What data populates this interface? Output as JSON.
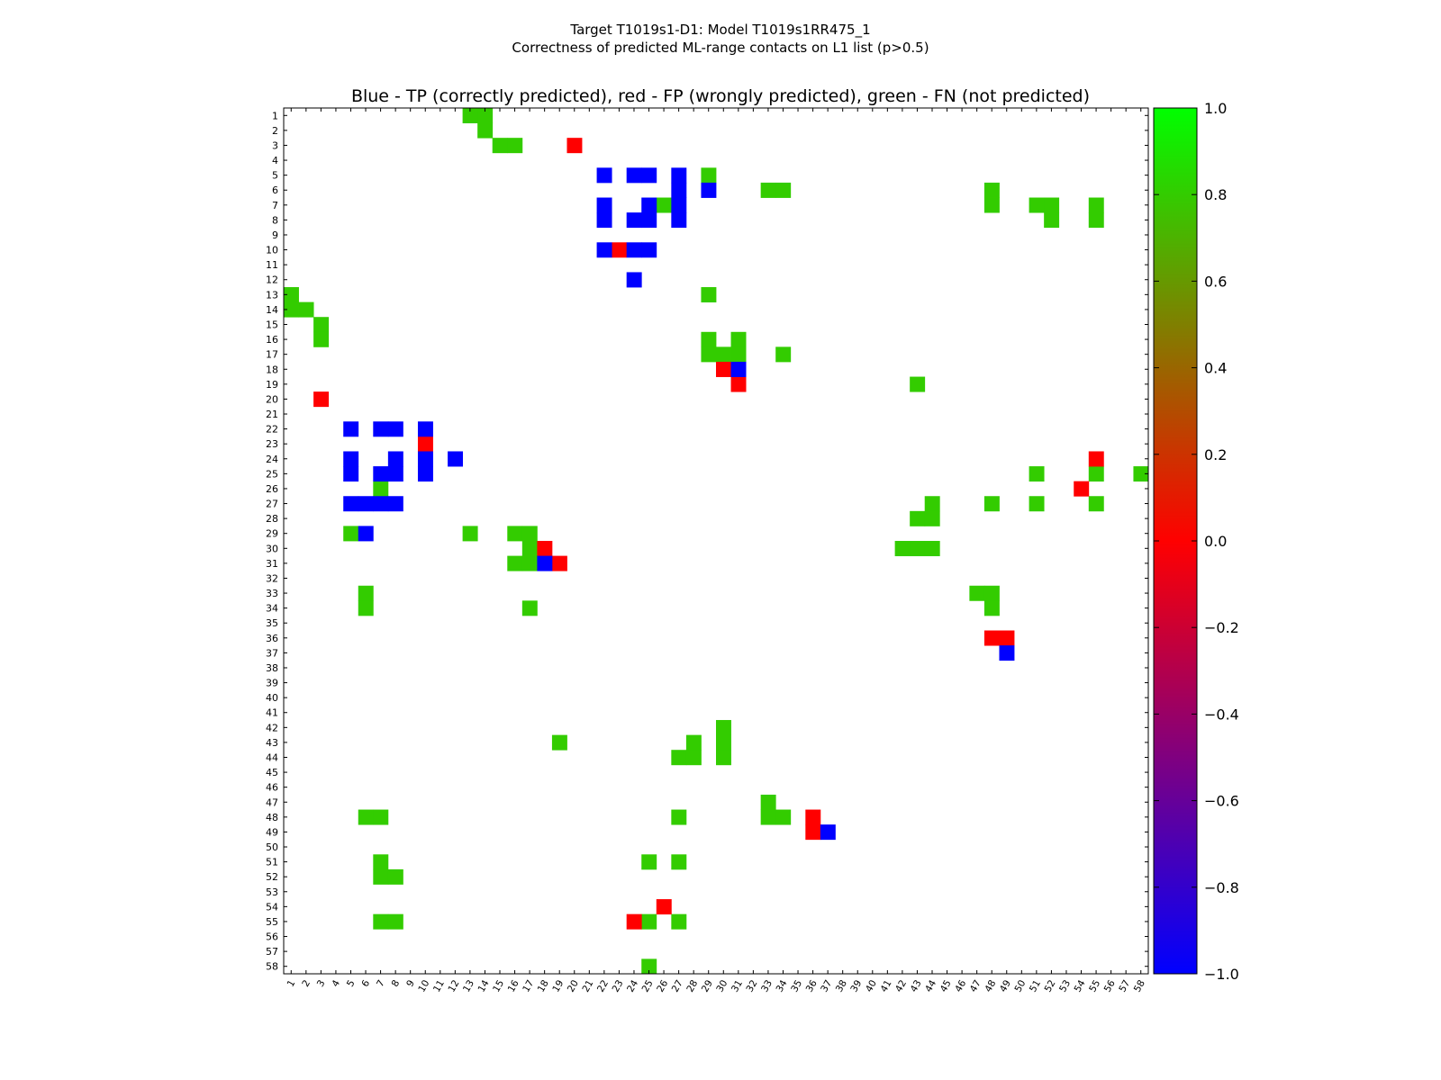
{
  "figure": {
    "suptitle_line1": "Target T1019s1-D1: Model T1019s1RR475_1",
    "suptitle_line2": "Correctness of predicted ML-range contacts on L1 list (p>0.5)"
  },
  "chart_data": {
    "type": "heatmap",
    "title": "Blue - TP (correctly predicted), red - FP (wrongly predicted), green - FN (not predicted)",
    "xlabel": "",
    "ylabel": "",
    "n": 58,
    "x_tick_labels": [
      "1",
      "2",
      "3",
      "4",
      "5",
      "6",
      "7",
      "8",
      "9",
      "10",
      "11",
      "12",
      "13",
      "14",
      "15",
      "16",
      "17",
      "18",
      "19",
      "20",
      "21",
      "22",
      "23",
      "24",
      "25",
      "26",
      "27",
      "28",
      "29",
      "30",
      "31",
      "32",
      "33",
      "34",
      "35",
      "36",
      "37",
      "38",
      "39",
      "40",
      "41",
      "42",
      "43",
      "44",
      "45",
      "46",
      "47",
      "48",
      "49",
      "50",
      "51",
      "52",
      "53",
      "54",
      "55",
      "56",
      "57",
      "58"
    ],
    "y_tick_labels": [
      "1",
      "2",
      "3",
      "4",
      "5",
      "6",
      "7",
      "8",
      "9",
      "10",
      "11",
      "12",
      "13",
      "14",
      "15",
      "16",
      "17",
      "18",
      "19",
      "20",
      "21",
      "22",
      "23",
      "24",
      "25",
      "26",
      "27",
      "28",
      "29",
      "30",
      "31",
      "32",
      "33",
      "34",
      "35",
      "36",
      "37",
      "38",
      "39",
      "40",
      "41",
      "42",
      "43",
      "44",
      "45",
      "46",
      "47",
      "48",
      "49",
      "50",
      "51",
      "52",
      "53",
      "54",
      "55",
      "56",
      "57",
      "58"
    ],
    "legend": {
      "TP": {
        "value": -1,
        "color": "#0000ff"
      },
      "FP": {
        "value": 0,
        "color": "#ff0000"
      },
      "FN": {
        "value": 0.8,
        "color": "#33cc00"
      }
    },
    "colorbar": {
      "range": [
        -1.0,
        1.0
      ],
      "tick_values": [
        1.0,
        0.8,
        0.6,
        0.4,
        0.2,
        0.0,
        -0.2,
        -0.4,
        -0.6,
        -0.8,
        -1.0
      ],
      "tick_labels": [
        "1.0",
        "0.8",
        "0.6",
        "0.4",
        "0.2",
        "0.0",
        "−0.2",
        "−0.4",
        "−0.6",
        "−0.8",
        "−1.0"
      ],
      "gradient": [
        "#0000ff",
        "#ff0000",
        "#00ff00"
      ],
      "placement": "right"
    },
    "cells": {
      "TP": [
        [
          5,
          22
        ],
        [
          5,
          24
        ],
        [
          5,
          25
        ],
        [
          5,
          27
        ],
        [
          6,
          27
        ],
        [
          6,
          29
        ],
        [
          7,
          22
        ],
        [
          7,
          25
        ],
        [
          7,
          27
        ],
        [
          8,
          22
        ],
        [
          8,
          24
        ],
        [
          8,
          25
        ],
        [
          8,
          27
        ],
        [
          10,
          22
        ],
        [
          10,
          24
        ],
        [
          10,
          25
        ],
        [
          12,
          24
        ],
        [
          18,
          31
        ],
        [
          22,
          5
        ],
        [
          22,
          7
        ],
        [
          22,
          8
        ],
        [
          22,
          10
        ],
        [
          24,
          5
        ],
        [
          24,
          8
        ],
        [
          24,
          10
        ],
        [
          24,
          12
        ],
        [
          25,
          5
        ],
        [
          25,
          7
        ],
        [
          25,
          8
        ],
        [
          25,
          10
        ],
        [
          27,
          5
        ],
        [
          27,
          6
        ],
        [
          27,
          7
        ],
        [
          27,
          8
        ],
        [
          29,
          6
        ],
        [
          31,
          18
        ],
        [
          37,
          49
        ],
        [
          49,
          37
        ]
      ],
      "FP": [
        [
          3,
          20
        ],
        [
          10,
          23
        ],
        [
          18,
          30
        ],
        [
          19,
          31
        ],
        [
          20,
          3
        ],
        [
          23,
          10
        ],
        [
          24,
          55
        ],
        [
          26,
          54
        ],
        [
          30,
          18
        ],
        [
          31,
          19
        ],
        [
          36,
          48
        ],
        [
          36,
          49
        ],
        [
          48,
          36
        ],
        [
          49,
          36
        ],
        [
          54,
          26
        ],
        [
          55,
          24
        ]
      ],
      "FN": [
        [
          1,
          13
        ],
        [
          1,
          14
        ],
        [
          2,
          14
        ],
        [
          3,
          15
        ],
        [
          3,
          16
        ],
        [
          5,
          29
        ],
        [
          6,
          33
        ],
        [
          6,
          34
        ],
        [
          6,
          48
        ],
        [
          7,
          26
        ],
        [
          7,
          48
        ],
        [
          7,
          51
        ],
        [
          7,
          52
        ],
        [
          7,
          55
        ],
        [
          8,
          52
        ],
        [
          8,
          55
        ],
        [
          13,
          1
        ],
        [
          13,
          29
        ],
        [
          14,
          1
        ],
        [
          14,
          2
        ],
        [
          15,
          3
        ],
        [
          16,
          3
        ],
        [
          16,
          29
        ],
        [
          16,
          31
        ],
        [
          17,
          29
        ],
        [
          17,
          30
        ],
        [
          17,
          31
        ],
        [
          17,
          34
        ],
        [
          19,
          43
        ],
        [
          25,
          51
        ],
        [
          25,
          55
        ],
        [
          25,
          58
        ],
        [
          26,
          7
        ],
        [
          27,
          44
        ],
        [
          27,
          48
        ],
        [
          27,
          51
        ],
        [
          27,
          55
        ],
        [
          28,
          43
        ],
        [
          28,
          44
        ],
        [
          29,
          5
        ],
        [
          29,
          13
        ],
        [
          29,
          16
        ],
        [
          29,
          17
        ],
        [
          30,
          17
        ],
        [
          30,
          42
        ],
        [
          30,
          43
        ],
        [
          30,
          44
        ],
        [
          31,
          16
        ],
        [
          31,
          17
        ],
        [
          33,
          6
        ],
        [
          33,
          47
        ],
        [
          33,
          48
        ],
        [
          34,
          6
        ],
        [
          34,
          17
        ],
        [
          34,
          48
        ],
        [
          42,
          30
        ],
        [
          43,
          19
        ],
        [
          43,
          28
        ],
        [
          43,
          30
        ],
        [
          44,
          27
        ],
        [
          44,
          28
        ],
        [
          44,
          30
        ],
        [
          47,
          33
        ],
        [
          48,
          6
        ],
        [
          48,
          7
        ],
        [
          48,
          27
        ],
        [
          48,
          33
        ],
        [
          48,
          34
        ],
        [
          51,
          7
        ],
        [
          51,
          25
        ],
        [
          51,
          27
        ],
        [
          52,
          7
        ],
        [
          52,
          8
        ],
        [
          55,
          7
        ],
        [
          55,
          8
        ],
        [
          55,
          25
        ],
        [
          55,
          27
        ],
        [
          58,
          25
        ]
      ]
    }
  }
}
